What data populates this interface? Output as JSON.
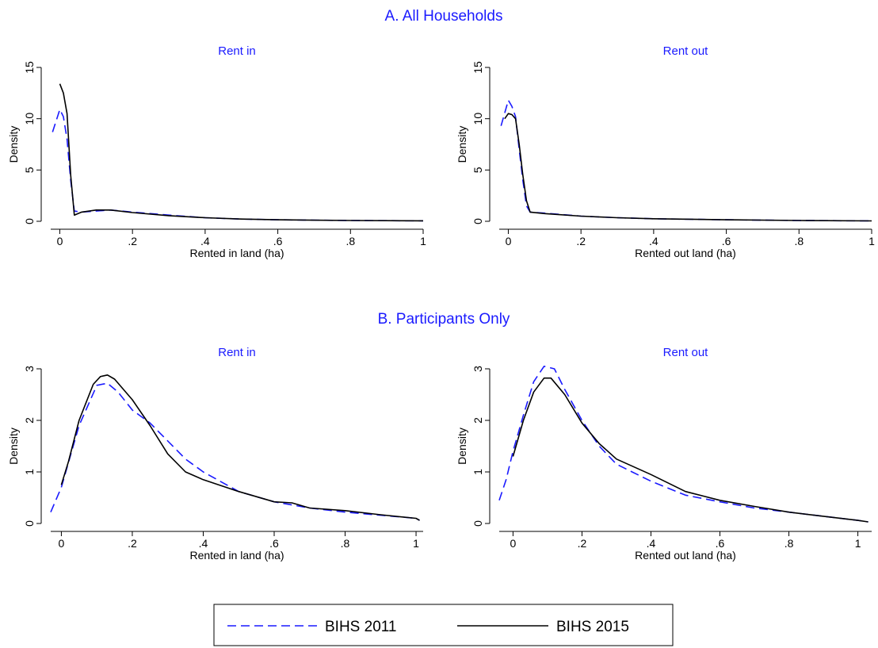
{
  "panel_titles": {
    "a": "A. All Households",
    "b": "B. Participants Only"
  },
  "legend": {
    "s2011": "BIHS 2011",
    "s2015": "BIHS 2015"
  },
  "colors": {
    "s2011": "#1a1aff",
    "s2015": "#000000",
    "titles": "#1a1aff"
  },
  "chart_data": [
    {
      "type": "line",
      "title": "Rent in",
      "xlabel": "Rented in land (ha)",
      "ylabel": "Density",
      "xlim": [
        -0.025,
        1.0
      ],
      "ylim": [
        0,
        15
      ],
      "xticks": [
        0,
        0.2,
        0.4,
        0.6,
        0.8,
        1
      ],
      "xtick_labels": [
        "0",
        ".2",
        ".4",
        ".6",
        ".8",
        "1"
      ],
      "yticks": [
        0,
        5,
        10,
        15
      ],
      "ytick_labels": [
        "0",
        "5",
        "10",
        "15"
      ],
      "series": [
        {
          "name": "BIHS 2011",
          "x": [
            -0.02,
            0.0,
            0.01,
            0.02,
            0.03,
            0.04,
            0.06,
            0.1,
            0.14,
            0.2,
            0.3,
            0.4,
            0.5,
            0.6,
            0.8,
            1.0
          ],
          "y": [
            8.7,
            10.9,
            10.2,
            8.0,
            4.0,
            1.0,
            0.9,
            1.0,
            1.1,
            0.9,
            0.6,
            0.35,
            0.22,
            0.15,
            0.08,
            0.05
          ]
        },
        {
          "name": "BIHS 2015",
          "x": [
            0.0,
            0.01,
            0.02,
            0.025,
            0.03,
            0.04,
            0.06,
            0.1,
            0.14,
            0.2,
            0.3,
            0.4,
            0.5,
            0.6,
            0.8,
            1.0
          ],
          "y": [
            13.4,
            12.5,
            10.5,
            7.5,
            4.5,
            0.6,
            0.9,
            1.1,
            1.1,
            0.85,
            0.55,
            0.35,
            0.22,
            0.15,
            0.08,
            0.05
          ]
        }
      ]
    },
    {
      "type": "line",
      "title": "Rent out",
      "xlabel": "Rented out land (ha)",
      "ylabel": "Density",
      "xlim": [
        -0.025,
        1.0
      ],
      "ylim": [
        0,
        15
      ],
      "xticks": [
        0,
        0.2,
        0.4,
        0.6,
        0.8,
        1
      ],
      "xtick_labels": [
        "0",
        ".2",
        ".4",
        ".6",
        ".8",
        "1"
      ],
      "yticks": [
        0,
        5,
        10,
        15
      ],
      "ytick_labels": [
        "0",
        "5",
        "10",
        "15"
      ],
      "series": [
        {
          "name": "BIHS 2011",
          "x": [
            -0.02,
            0.0,
            0.01,
            0.02,
            0.03,
            0.04,
            0.05,
            0.06,
            0.1,
            0.2,
            0.3,
            0.4,
            0.6,
            0.8,
            1.0
          ],
          "y": [
            9.3,
            11.8,
            11.2,
            10.2,
            7.0,
            4.0,
            1.5,
            0.9,
            0.8,
            0.5,
            0.35,
            0.25,
            0.15,
            0.08,
            0.04
          ]
        },
        {
          "name": "BIHS 2015",
          "x": [
            -0.01,
            0.0,
            0.01,
            0.02,
            0.03,
            0.04,
            0.05,
            0.06,
            0.1,
            0.2,
            0.3,
            0.4,
            0.6,
            0.8,
            1.0
          ],
          "y": [
            10.0,
            10.5,
            10.4,
            10.0,
            7.5,
            4.5,
            2.0,
            0.9,
            0.75,
            0.5,
            0.35,
            0.25,
            0.15,
            0.08,
            0.04
          ]
        }
      ]
    },
    {
      "type": "line",
      "title": "Rent in",
      "xlabel": "Rented in land (ha)",
      "ylabel": "Density",
      "xlim": [
        -0.03,
        1.02
      ],
      "ylim": [
        0,
        3
      ],
      "xticks": [
        0,
        0.2,
        0.4,
        0.6,
        0.8,
        1
      ],
      "xtick_labels": [
        "0",
        ".2",
        ".4",
        ".6",
        ".8",
        "1"
      ],
      "yticks": [
        0,
        1,
        2,
        3
      ],
      "ytick_labels": [
        "0",
        "1",
        "2",
        "3"
      ],
      "series": [
        {
          "name": "BIHS 2011",
          "x": [
            -0.03,
            0.0,
            0.05,
            0.1,
            0.13,
            0.16,
            0.2,
            0.25,
            0.3,
            0.35,
            0.4,
            0.5,
            0.6,
            0.7,
            0.8,
            0.9,
            1.0,
            1.01
          ],
          "y": [
            0.22,
            0.7,
            1.9,
            2.68,
            2.72,
            2.55,
            2.2,
            1.95,
            1.6,
            1.25,
            1.0,
            0.62,
            0.42,
            0.3,
            0.22,
            0.16,
            0.1,
            0.06
          ]
        },
        {
          "name": "BIHS 2015",
          "x": [
            0.0,
            0.02,
            0.05,
            0.09,
            0.11,
            0.13,
            0.15,
            0.2,
            0.25,
            0.3,
            0.35,
            0.4,
            0.5,
            0.6,
            0.65,
            0.7,
            0.8,
            0.9,
            1.0,
            1.01
          ],
          "y": [
            0.75,
            1.2,
            2.0,
            2.7,
            2.85,
            2.88,
            2.8,
            2.4,
            1.9,
            1.35,
            1.0,
            0.85,
            0.62,
            0.42,
            0.4,
            0.3,
            0.25,
            0.17,
            0.1,
            0.06
          ]
        }
      ]
    },
    {
      "type": "line",
      "title": "Rent out",
      "xlabel": "Rented out land (ha)",
      "ylabel": "Density",
      "xlim": [
        -0.04,
        1.04
      ],
      "ylim": [
        0,
        3
      ],
      "xticks": [
        0,
        0.2,
        0.4,
        0.6,
        0.8,
        1
      ],
      "xtick_labels": [
        "0",
        ".2",
        ".4",
        ".6",
        ".8",
        "1"
      ],
      "yticks": [
        0,
        1,
        2,
        3
      ],
      "ytick_labels": [
        "0",
        "1",
        "2",
        "3"
      ],
      "series": [
        {
          "name": "BIHS 2011",
          "x": [
            -0.04,
            -0.02,
            0.0,
            0.03,
            0.06,
            0.09,
            0.12,
            0.15,
            0.2,
            0.25,
            0.3,
            0.4,
            0.5,
            0.6,
            0.7,
            0.8,
            0.9,
            1.0,
            1.03
          ],
          "y": [
            0.45,
            0.85,
            1.4,
            2.1,
            2.75,
            3.05,
            3.0,
            2.6,
            2.0,
            1.5,
            1.15,
            0.82,
            0.55,
            0.42,
            0.3,
            0.22,
            0.14,
            0.06,
            0.03
          ]
        },
        {
          "name": "BIHS 2015",
          "x": [
            0.0,
            0.03,
            0.06,
            0.09,
            0.11,
            0.15,
            0.2,
            0.25,
            0.3,
            0.4,
            0.5,
            0.6,
            0.7,
            0.8,
            0.9,
            1.0,
            1.03
          ],
          "y": [
            1.3,
            2.0,
            2.55,
            2.82,
            2.82,
            2.5,
            1.95,
            1.55,
            1.25,
            0.95,
            0.62,
            0.45,
            0.33,
            0.22,
            0.14,
            0.06,
            0.03
          ]
        }
      ]
    }
  ]
}
